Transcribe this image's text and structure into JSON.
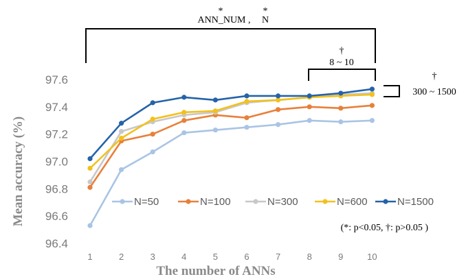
{
  "chart_data": {
    "type": "line",
    "xlabel": "The number of ANNs",
    "ylabel": "Mean accuracy (%)",
    "x": [
      1,
      2,
      3,
      4,
      5,
      6,
      7,
      8,
      9,
      10
    ],
    "ylim": [
      96.4,
      97.6
    ],
    "yticks": [
      "96.4",
      "96.6",
      "96.8",
      "97.0",
      "97.2",
      "97.4",
      "97.6"
    ],
    "grid": false,
    "legend_position": "inside-bottom",
    "series": [
      {
        "name": "N=50",
        "color": "#a9c4e4",
        "values": [
          96.53,
          96.94,
          97.07,
          97.21,
          97.23,
          97.25,
          97.27,
          97.3,
          97.29,
          97.3
        ]
      },
      {
        "name": "N=100",
        "color": "#e8803a",
        "values": [
          96.81,
          97.15,
          97.2,
          97.3,
          97.34,
          97.32,
          97.38,
          97.4,
          97.39,
          97.41
        ]
      },
      {
        "name": "N=300",
        "color": "#c8c8c8",
        "values": [
          96.85,
          97.22,
          97.29,
          97.34,
          97.36,
          97.43,
          97.45,
          97.47,
          97.49,
          97.5
        ]
      },
      {
        "name": "N=600",
        "color": "#f2c11d",
        "values": [
          96.95,
          97.17,
          97.31,
          97.36,
          97.37,
          97.44,
          97.45,
          97.47,
          97.48,
          97.49
        ]
      },
      {
        "name": "N=1500",
        "color": "#2563a8",
        "values": [
          97.02,
          97.28,
          97.43,
          97.47,
          97.45,
          97.48,
          97.48,
          97.48,
          97.5,
          97.53
        ]
      }
    ],
    "annotations": {
      "top_bracket_mark": "*",
      "top_bracket_label": "ANN_NUM ,",
      "top_bracket_mark2": "*",
      "top_bracket_label2": "N",
      "sub_bracket_mark": "†",
      "sub_bracket_label": "8 ~ 10",
      "side_bracket_mark": "†",
      "side_bracket_label": "300 ~ 1500",
      "note": "(*: p<0.05, †: p>0.05 )"
    }
  }
}
